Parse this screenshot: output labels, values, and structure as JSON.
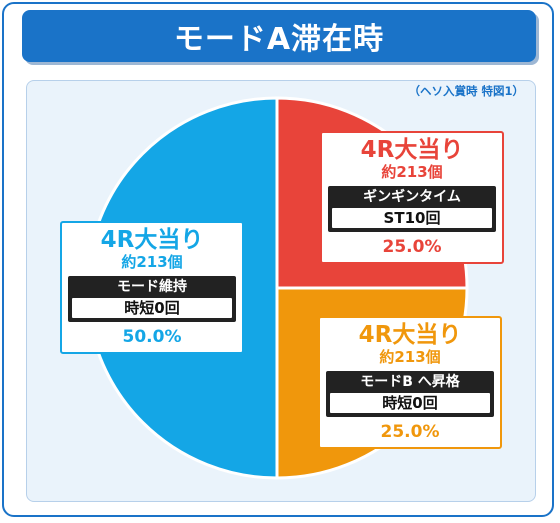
{
  "title": "モードA滞在時",
  "note": "（ヘソ入賞時 特図1）",
  "colors": {
    "title_bg": "#1a73c8",
    "blue": "#14a6e6",
    "red": "#e8443a",
    "orange": "#f0970c"
  },
  "labels": {
    "blue": {
      "head": "4R大当り",
      "count": "約213個",
      "tag": "モード維持",
      "value": "時短0回",
      "pct": "50.0%"
    },
    "red": {
      "head": "4R大当り",
      "count": "約213個",
      "tag": "ギンギンタイム",
      "value": "ST10回",
      "pct": "25.0%"
    },
    "orange": {
      "head": "4R大当り",
      "count": "約213個",
      "tag": "モードB へ昇格",
      "value": "時短0回",
      "pct": "25.0%"
    }
  },
  "chart_data": {
    "type": "pie",
    "title": "モードA滞在時",
    "slices": [
      {
        "label": "4R大当り 約213個 ギンギンタイム ST10回",
        "value": 25.0,
        "color": "#e8443a"
      },
      {
        "label": "4R大当り 約213個 モードB へ昇格 時短0回",
        "value": 25.0,
        "color": "#f0970c"
      },
      {
        "label": "4R大当り 約213個 モード維持 時短0回",
        "value": 50.0,
        "color": "#14a6e6"
      }
    ]
  }
}
